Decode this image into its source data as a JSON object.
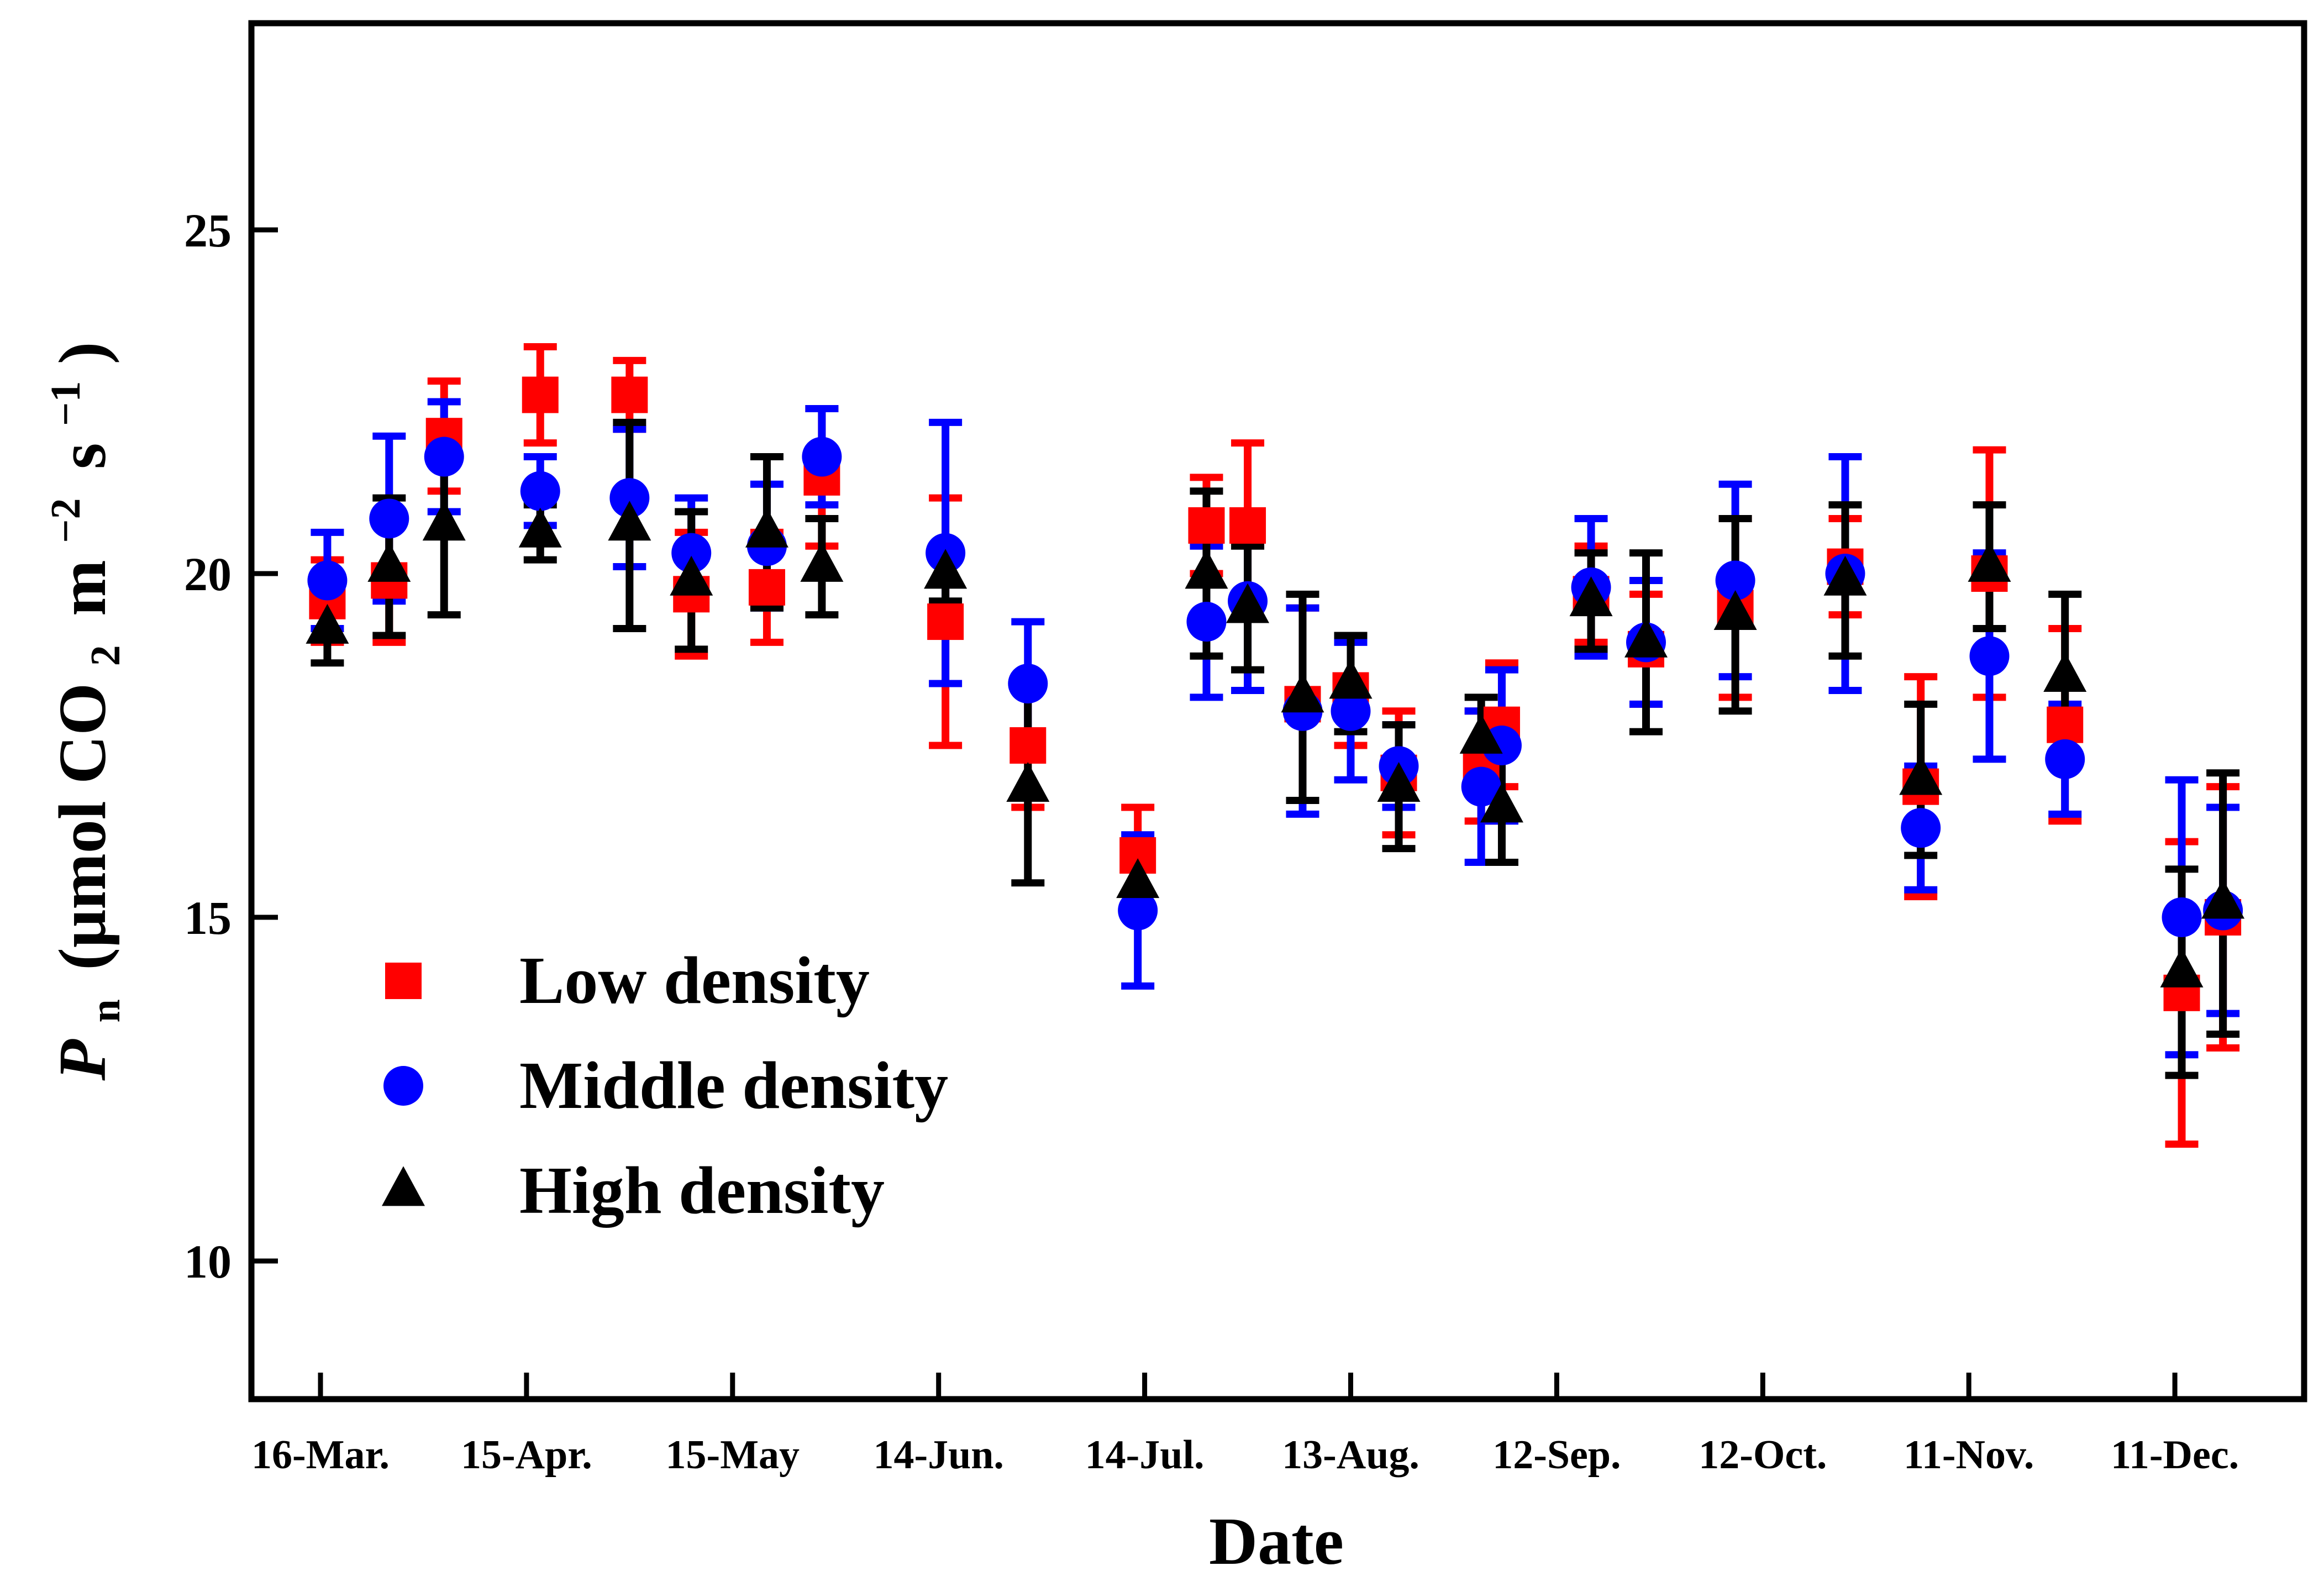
{
  "chart_data": {
    "type": "scatter",
    "xlabel": "Date",
    "ylabel": {
      "main": "P",
      "sub": "n",
      "unit_prefix": "(μmol CO",
      "co2_sub": "2",
      "m": "m",
      "m_exp": "−2",
      "s": "s",
      "s_exp": "−1",
      "close": ")"
    },
    "xlim": [
      0,
      275
    ],
    "ylim": [
      8,
      28
    ],
    "yticks": [
      10,
      15,
      20,
      25
    ],
    "xticks": [
      {
        "day": 0,
        "label": "16-Mar."
      },
      {
        "day": 30,
        "label": "15-Apr."
      },
      {
        "day": 60,
        "label": "15-May"
      },
      {
        "day": 90,
        "label": "14-Jun."
      },
      {
        "day": 120,
        "label": "14-Jul."
      },
      {
        "day": 150,
        "label": "13-Aug."
      },
      {
        "day": 180,
        "label": "12-Sep."
      },
      {
        "day": 210,
        "label": "12-Oct."
      },
      {
        "day": 240,
        "label": "11-Nov."
      },
      {
        "day": 270,
        "label": "11-Dec."
      }
    ],
    "legend_position": "bottom-left",
    "series": [
      {
        "name": "Low density",
        "marker": "square",
        "color": "#ff0000",
        "points": [
          {
            "x": 1,
            "y": 19.6,
            "err": 0.6
          },
          {
            "x": 10,
            "y": 19.9,
            "err": 0.9
          },
          {
            "x": 18,
            "y": 22.0,
            "err": 0.8
          },
          {
            "x": 32,
            "y": 22.6,
            "err": 0.7
          },
          {
            "x": 45,
            "y": 22.6,
            "err": 0.5
          },
          {
            "x": 54,
            "y": 19.7,
            "err": 0.9
          },
          {
            "x": 65,
            "y": 19.8,
            "err": 0.8
          },
          {
            "x": 73,
            "y": 21.4,
            "err": 1.0
          },
          {
            "x": 91,
            "y": 19.3,
            "err": 1.8
          },
          {
            "x": 103,
            "y": 17.5,
            "err": 0.9
          },
          {
            "x": 119,
            "y": 15.9,
            "err": 0.7
          },
          {
            "x": 129,
            "y": 20.7,
            "err": 0.7
          },
          {
            "x": 135,
            "y": 20.7,
            "err": 1.2
          },
          {
            "x": 143,
            "y": 18.1,
            "err": 1.4
          },
          {
            "x": 150,
            "y": 18.3,
            "err": 0.8
          },
          {
            "x": 157,
            "y": 17.1,
            "err": 0.9
          },
          {
            "x": 169,
            "y": 17.2,
            "err": 0.8
          },
          {
            "x": 172,
            "y": 17.8,
            "err": 0.9
          },
          {
            "x": 185,
            "y": 19.7,
            "err": 0.7
          },
          {
            "x": 193,
            "y": 18.9,
            "err": 0.8
          },
          {
            "x": 206,
            "y": 19.5,
            "err": 1.3
          },
          {
            "x": 222,
            "y": 20.1,
            "err": 0.7
          },
          {
            "x": 233,
            "y": 16.9,
            "err": 1.6
          },
          {
            "x": 243,
            "y": 20.0,
            "err": 1.8
          },
          {
            "x": 254,
            "y": 17.8,
            "err": 1.4
          },
          {
            "x": 271,
            "y": 13.9,
            "err": 2.2
          },
          {
            "x": 277,
            "y": 15.0,
            "err": 1.9
          }
        ]
      },
      {
        "name": "Middle density",
        "marker": "circle",
        "color": "#0000ff",
        "points": [
          {
            "x": 1,
            "y": 19.9,
            "err": 0.7
          },
          {
            "x": 10,
            "y": 20.8,
            "err": 1.2
          },
          {
            "x": 18,
            "y": 21.7,
            "err": 0.8
          },
          {
            "x": 32,
            "y": 21.2,
            "err": 0.5
          },
          {
            "x": 45,
            "y": 21.1,
            "err": 1.0
          },
          {
            "x": 54,
            "y": 20.3,
            "err": 0.8
          },
          {
            "x": 65,
            "y": 20.4,
            "err": 0.9
          },
          {
            "x": 73,
            "y": 21.7,
            "err": 0.7
          },
          {
            "x": 91,
            "y": 20.3,
            "err": 1.9
          },
          {
            "x": 103,
            "y": 18.4,
            "err": 0.9
          },
          {
            "x": 119,
            "y": 15.1,
            "err": 1.1
          },
          {
            "x": 129,
            "y": 19.3,
            "err": 1.1
          },
          {
            "x": 135,
            "y": 19.6,
            "err": 1.3
          },
          {
            "x": 143,
            "y": 18.0,
            "err": 1.5
          },
          {
            "x": 150,
            "y": 18.0,
            "err": 1.0
          },
          {
            "x": 157,
            "y": 17.2,
            "err": 0.6
          },
          {
            "x": 169,
            "y": 16.9,
            "err": 1.1
          },
          {
            "x": 172,
            "y": 17.5,
            "err": 1.1
          },
          {
            "x": 185,
            "y": 19.8,
            "err": 1.0
          },
          {
            "x": 193,
            "y": 19.0,
            "err": 0.9
          },
          {
            "x": 206,
            "y": 19.9,
            "err": 1.4
          },
          {
            "x": 222,
            "y": 20.0,
            "err": 1.7
          },
          {
            "x": 233,
            "y": 16.3,
            "err": 0.9
          },
          {
            "x": 243,
            "y": 18.8,
            "err": 1.5
          },
          {
            "x": 254,
            "y": 17.3,
            "err": 0.8
          },
          {
            "x": 271,
            "y": 15.0,
            "err": 2.0
          },
          {
            "x": 277,
            "y": 15.1,
            "err": 1.5
          }
        ]
      },
      {
        "name": "High density",
        "marker": "triangle",
        "color": "#000000",
        "points": [
          {
            "x": 1,
            "y": 19.2,
            "err": 0.5
          },
          {
            "x": 10,
            "y": 20.1,
            "err": 1.0
          },
          {
            "x": 18,
            "y": 20.7,
            "err": 1.3
          },
          {
            "x": 32,
            "y": 20.6,
            "err": 0.4
          },
          {
            "x": 45,
            "y": 20.7,
            "err": 1.5
          },
          {
            "x": 54,
            "y": 19.9,
            "err": 1.0
          },
          {
            "x": 65,
            "y": 20.6,
            "err": 1.1
          },
          {
            "x": 73,
            "y": 20.1,
            "err": 0.7
          },
          {
            "x": 91,
            "y": 20.0,
            "err": 0.4
          },
          {
            "x": 103,
            "y": 16.9,
            "err": 1.4
          },
          {
            "x": 119,
            "y": 15.5,
            "err": 0.4
          },
          {
            "x": 129,
            "y": 20.0,
            "err": 1.2
          },
          {
            "x": 135,
            "y": 19.5,
            "err": 0.9
          },
          {
            "x": 143,
            "y": 18.2,
            "err": 1.5
          },
          {
            "x": 150,
            "y": 18.4,
            "err": 0.7
          },
          {
            "x": 157,
            "y": 16.9,
            "err": 0.9
          },
          {
            "x": 169,
            "y": 17.6,
            "err": 0.6
          },
          {
            "x": 172,
            "y": 16.6,
            "err": 0.8
          },
          {
            "x": 185,
            "y": 19.6,
            "err": 0.7
          },
          {
            "x": 193,
            "y": 19.0,
            "err": 1.3
          },
          {
            "x": 206,
            "y": 19.4,
            "err": 1.4
          },
          {
            "x": 222,
            "y": 19.9,
            "err": 1.1
          },
          {
            "x": 233,
            "y": 17.0,
            "err": 1.1
          },
          {
            "x": 243,
            "y": 20.1,
            "err": 0.9
          },
          {
            "x": 254,
            "y": 18.5,
            "err": 1.2
          },
          {
            "x": 271,
            "y": 14.2,
            "err": 1.5
          },
          {
            "x": 277,
            "y": 15.2,
            "err": 1.9
          }
        ]
      }
    ]
  }
}
